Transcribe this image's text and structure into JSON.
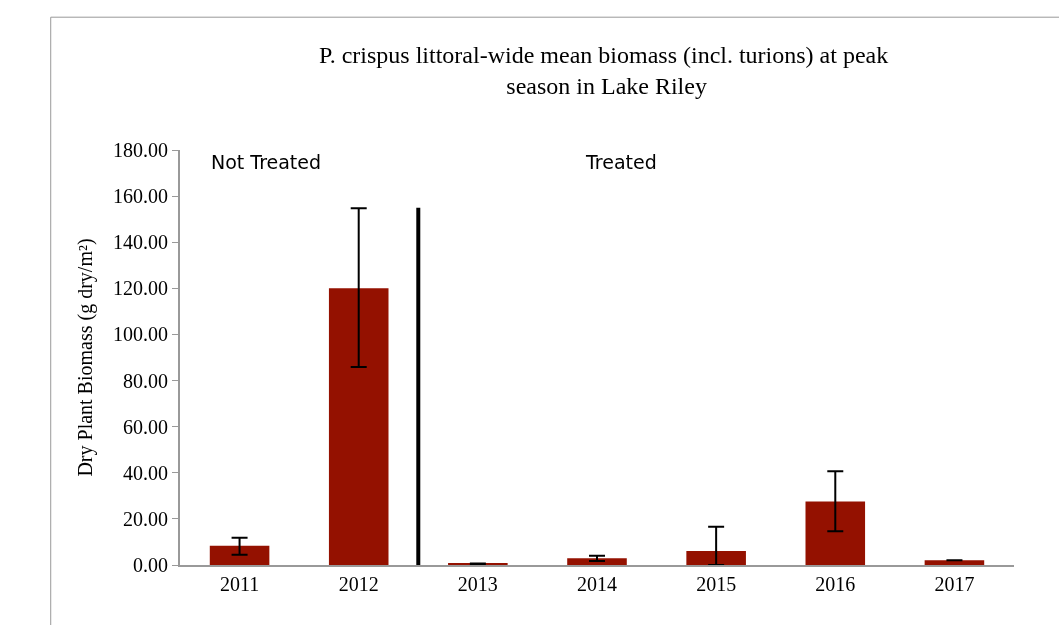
{
  "chart_data": {
    "type": "bar",
    "title": "P. crispus littoral-wide mean biomass (incl. turions) at peak season in Lake Riley",
    "ylabel": "Dry Plant Biomass (g dry/m²)",
    "categories": [
      "2011",
      "2012",
      "2013",
      "2014",
      "2015",
      "2016",
      "2017"
    ],
    "values": [
      8.3,
      120,
      0.5,
      2.9,
      6.1,
      27.5,
      2.1
    ],
    "errors": [
      [
        4.4,
        11.8
      ],
      [
        85.9,
        154.7
      ],
      [
        0.3,
        0.7
      ],
      [
        1.7,
        4.0
      ],
      [
        0,
        16.6
      ],
      [
        14.6,
        40.7
      ],
      null
    ],
    "color": "#941100",
    "ylim": [
      0,
      180
    ],
    "yticks": [
      {
        "value": 0,
        "label": "0.00"
      },
      {
        "value": 20,
        "label": "20.00"
      },
      {
        "value": 40,
        "label": "40.00"
      },
      {
        "value": 60,
        "label": "60.00"
      },
      {
        "value": 80,
        "label": "80.00"
      },
      {
        "value": 100,
        "label": "100.00"
      },
      {
        "value": 120,
        "label": "120.00"
      },
      {
        "value": 140,
        "label": "140.00"
      },
      {
        "value": 160,
        "label": "160.00"
      },
      {
        "value": 180,
        "label": "180.00"
      }
    ],
    "annotations": [
      "Not Treated",
      "Treated"
    ],
    "legend": false
  }
}
